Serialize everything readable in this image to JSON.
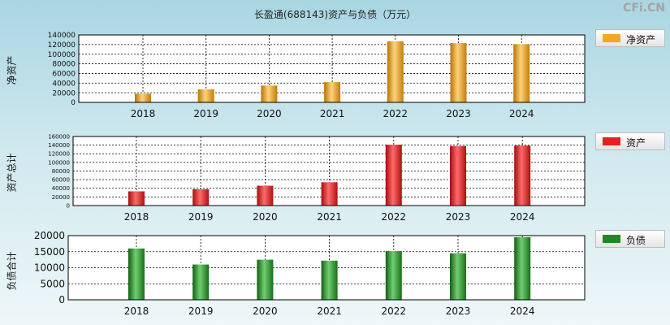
{
  "title": "长盈通(688143)资产与负债（万元）",
  "watermark": "CFi.CN",
  "chart_data": [
    {
      "type": "bar",
      "ylabel": "净资产",
      "legend": "净资产",
      "color": "#f5a623",
      "categories": [
        "2018",
        "2019",
        "2020",
        "2021",
        "2022",
        "2023",
        "2024"
      ],
      "values": [
        18000,
        27000,
        35000,
        42000,
        127000,
        123000,
        121000
      ],
      "ylim": [
        0,
        140000
      ],
      "yticks": [
        "0",
        "20000",
        "40000",
        "60000",
        "80000",
        "100000",
        "120000",
        "140000"
      ],
      "grid": true,
      "legend_position": "right"
    },
    {
      "type": "bar",
      "ylabel": "资产总计",
      "legend": "资产",
      "color": "#e62020",
      "categories": [
        "2018",
        "2019",
        "2020",
        "2021",
        "2022",
        "2023",
        "2024"
      ],
      "values": [
        33000,
        38000,
        46000,
        54000,
        141000,
        138000,
        139000
      ],
      "ylim": [
        0,
        160000
      ],
      "yticks": [
        "0",
        "20000",
        "40000",
        "60000",
        "80000",
        "100000",
        "120000",
        "140000",
        "160000"
      ],
      "grid": true,
      "legend_position": "right"
    },
    {
      "type": "bar",
      "ylabel": "负债合计",
      "legend": "负债",
      "color": "#1f8a1f",
      "categories": [
        "2018",
        "2019",
        "2020",
        "2021",
        "2022",
        "2023",
        "2024"
      ],
      "values": [
        16000,
        11000,
        12500,
        12200,
        15200,
        14500,
        19500
      ],
      "ylim": [
        0,
        20000
      ],
      "yticks": [
        "0",
        "5000",
        "10000",
        "15000",
        "20000"
      ],
      "grid": true,
      "legend_position": "right"
    }
  ]
}
